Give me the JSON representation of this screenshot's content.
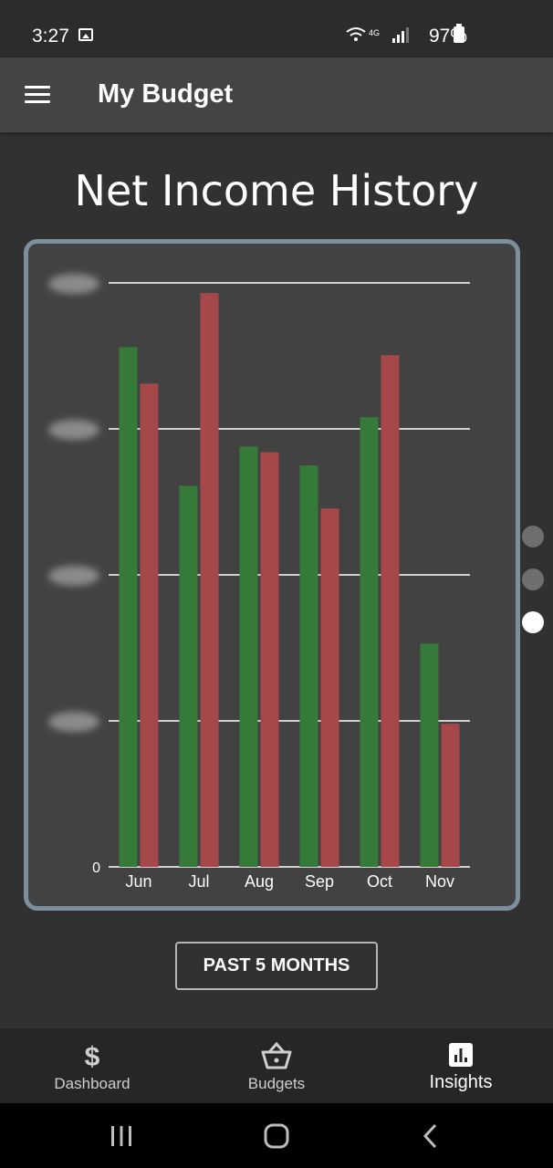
{
  "status": {
    "time": "3:27",
    "battery": "97%"
  },
  "app": {
    "title": "My Budget"
  },
  "page": {
    "title": "Net Income History"
  },
  "chart_data": {
    "type": "bar",
    "categories": [
      "Jun",
      "Jul",
      "Aug",
      "Sep",
      "Oct",
      "Nov"
    ],
    "series": [
      {
        "values": [
          71.2,
          52.2,
          57.6,
          55.0,
          61.6,
          30.6
        ],
        "color": "#357a38"
      },
      {
        "values": [
          66.2,
          78.6,
          56.8,
          49.1,
          70.1,
          19.6
        ],
        "color": "#a6474a"
      }
    ],
    "y_ticks": [
      "0",
      "",
      "",
      "",
      ""
    ],
    "y_tick_values": [
      0,
      20,
      40,
      60,
      80
    ],
    "ylim": [
      0,
      80
    ],
    "grid": true,
    "y_tick_labels_obscured": true
  },
  "pager": {
    "count": 3,
    "active_index": 2
  },
  "range_button": {
    "label": "PAST 5 MONTHS"
  },
  "nav": {
    "items": [
      {
        "label": "Dashboard",
        "icon": "dollar-icon"
      },
      {
        "label": "Budgets",
        "icon": "basket-icon"
      },
      {
        "label": "Insights",
        "icon": "bar-chart-icon"
      }
    ],
    "active_index": 2
  },
  "colors": {
    "accent_green": "#357a38",
    "accent_red": "#a6474a",
    "card_border": "#7b909c"
  }
}
